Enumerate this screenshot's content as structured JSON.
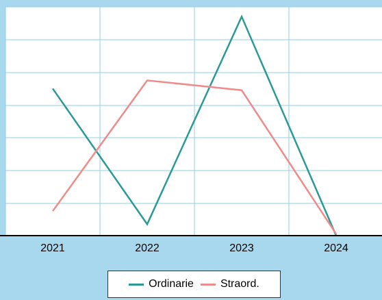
{
  "chart_data": {
    "type": "line",
    "categories": [
      "2021",
      "2022",
      "2023",
      "2024"
    ],
    "series": [
      {
        "name": "Ordinarie",
        "values": [
          45,
          3.5,
          67,
          0
        ],
        "color": "#2a9a96"
      },
      {
        "name": "Straord.",
        "values": [
          7.5,
          47.5,
          44.5,
          0.5
        ],
        "color": "#f08b8b"
      }
    ],
    "ylim": [
      0,
      70
    ],
    "grid": true,
    "legend": "bottom-center",
    "colors": {
      "background": "#a8d8ee",
      "plot_background": "#ffffff",
      "grid": "#8fcfe6",
      "axis": "#000000"
    }
  }
}
